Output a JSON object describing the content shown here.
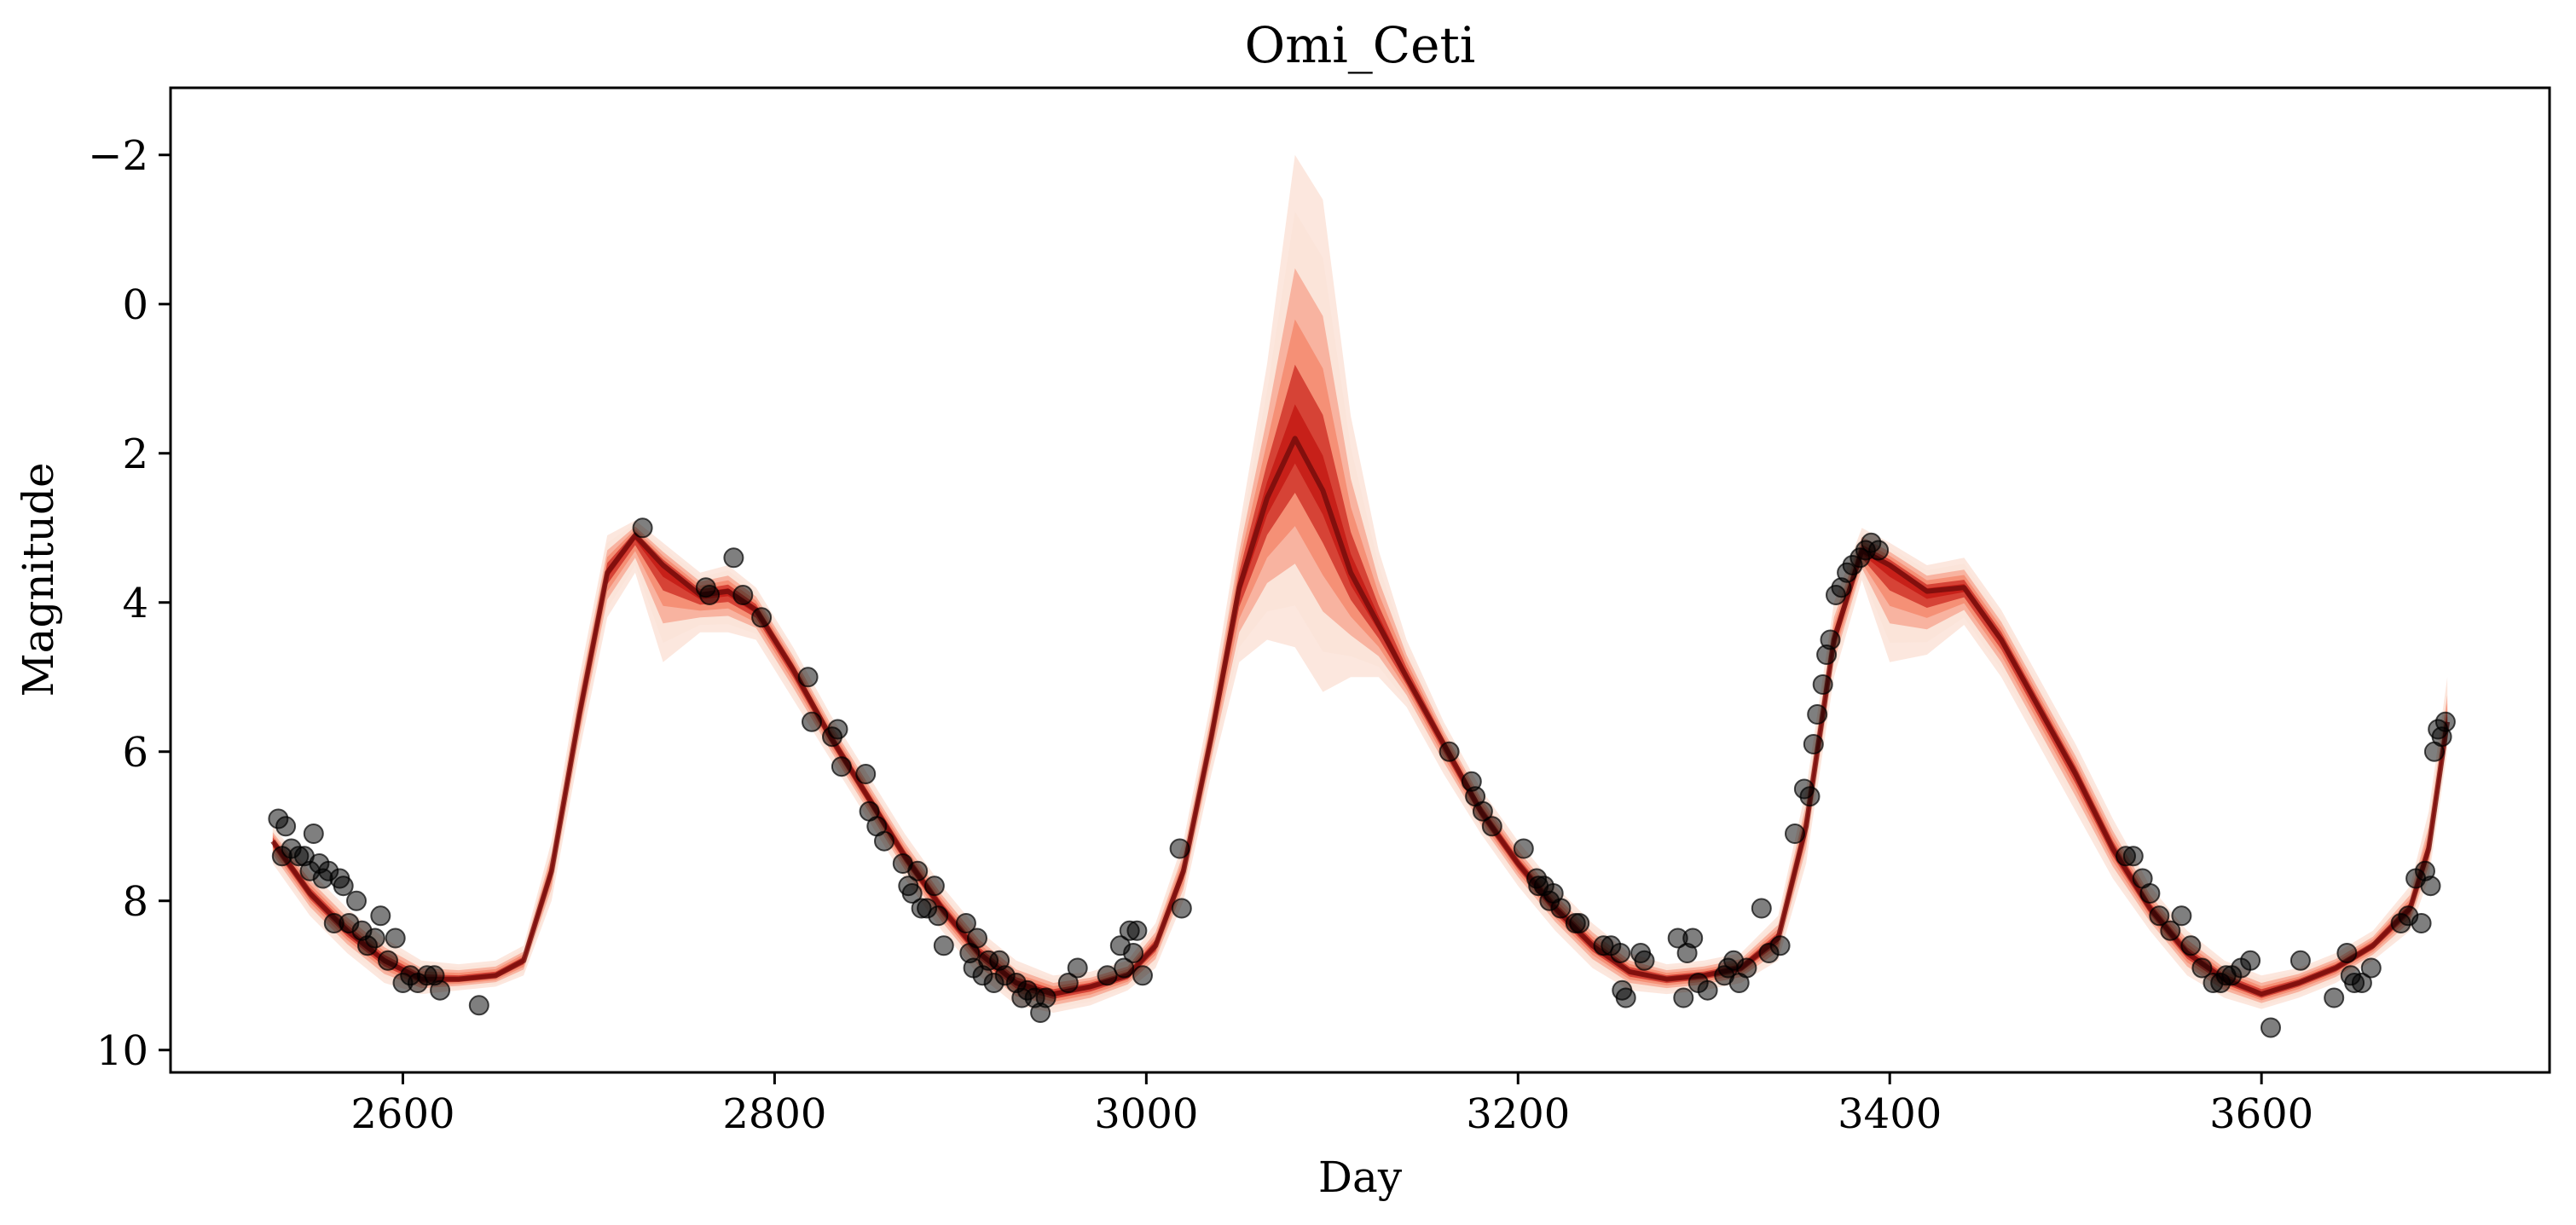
{
  "chart_data": {
    "type": "scatter",
    "title": "Omi_Ceti",
    "xlabel": "Day",
    "ylabel": "Magnitude",
    "xlim": [
      2475,
      3755
    ],
    "ylim": [
      10.3,
      -2.9
    ],
    "y_inverted": true,
    "x_ticks": [
      2600,
      2800,
      3000,
      3200,
      3400,
      3600
    ],
    "x_tick_labels": [
      "2600",
      "2800",
      "3000",
      "3200",
      "3400",
      "3600"
    ],
    "y_ticks": [
      -2,
      0,
      2,
      4,
      6,
      8,
      10
    ],
    "y_tick_labels": [
      "−2",
      "0",
      "2",
      "4",
      "6",
      "8",
      "10"
    ],
    "grid": false,
    "colors": {
      "band_light": "#fbe3d8",
      "band_mid": "#f4785a",
      "band_dark": "#c41a14",
      "median_line": "#6b0a0a",
      "observations": "#000000"
    },
    "model_band": {
      "x": [
        2530,
        2550,
        2570,
        2590,
        2610,
        2630,
        2650,
        2665,
        2680,
        2695,
        2710,
        2725,
        2740,
        2760,
        2775,
        2790,
        2810,
        2830,
        2850,
        2870,
        2890,
        2910,
        2930,
        2950,
        2970,
        2990,
        3005,
        3020,
        3035,
        3050,
        3065,
        3080,
        3095,
        3110,
        3125,
        3140,
        3160,
        3180,
        3200,
        3220,
        3240,
        3260,
        3280,
        3300,
        3320,
        3340,
        3355,
        3370,
        3385,
        3400,
        3420,
        3440,
        3460,
        3480,
        3500,
        3520,
        3540,
        3560,
        3580,
        3600,
        3620,
        3640,
        3660,
        3680,
        3690,
        3700
      ],
      "median": [
        7.2,
        7.9,
        8.4,
        8.8,
        9.05,
        9.05,
        9.0,
        8.8,
        7.6,
        5.5,
        3.6,
        3.1,
        3.5,
        3.9,
        3.85,
        4.1,
        4.9,
        5.8,
        6.6,
        7.4,
        8.1,
        8.7,
        9.1,
        9.25,
        9.15,
        9.0,
        8.6,
        7.6,
        5.8,
        3.8,
        2.6,
        1.8,
        2.5,
        3.6,
        4.3,
        5.0,
        5.9,
        6.8,
        7.5,
        8.1,
        8.6,
        8.95,
        9.05,
        9.0,
        8.9,
        8.5,
        7.0,
        4.5,
        3.3,
        3.5,
        3.85,
        3.8,
        4.5,
        5.4,
        6.3,
        7.3,
        8.1,
        8.7,
        9.05,
        9.25,
        9.1,
        8.9,
        8.6,
        8.1,
        7.3,
        5.6
      ],
      "lower": [
        7.0,
        7.6,
        8.1,
        8.5,
        8.8,
        8.85,
        8.8,
        8.6,
        7.2,
        5.0,
        3.1,
        2.9,
        3.2,
        3.6,
        3.5,
        3.8,
        4.6,
        5.5,
        6.3,
        7.1,
        7.8,
        8.4,
        8.8,
        9.0,
        8.95,
        8.8,
        8.3,
        7.2,
        5.3,
        3.0,
        0.8,
        -2.0,
        -1.4,
        1.5,
        3.3,
        4.5,
        5.6,
        6.5,
        7.2,
        7.8,
        8.3,
        8.7,
        8.85,
        8.8,
        8.7,
        8.2,
        6.5,
        4.0,
        3.0,
        3.2,
        3.5,
        3.4,
        4.1,
        5.0,
        5.9,
        6.9,
        7.8,
        8.4,
        8.8,
        9.0,
        8.9,
        8.7,
        8.4,
        7.8,
        6.8,
        5.0
      ],
      "upper": [
        7.5,
        8.2,
        8.7,
        9.1,
        9.25,
        9.2,
        9.15,
        9.0,
        8.0,
        6.0,
        4.2,
        3.6,
        4.8,
        4.4,
        4.4,
        4.5,
        5.3,
        6.1,
        6.9,
        7.7,
        8.4,
        9.0,
        9.4,
        9.5,
        9.4,
        9.2,
        8.9,
        8.0,
        6.3,
        4.8,
        4.5,
        4.6,
        5.2,
        5.0,
        5.0,
        5.4,
        6.3,
        7.1,
        7.8,
        8.4,
        8.9,
        9.2,
        9.25,
        9.2,
        9.1,
        8.8,
        7.5,
        5.0,
        3.7,
        4.8,
        4.7,
        4.3,
        5.0,
        5.9,
        6.8,
        7.7,
        8.4,
        9.0,
        9.3,
        9.45,
        9.3,
        9.1,
        8.8,
        8.4,
        7.7,
        6.0
      ]
    },
    "observations": {
      "x": [
        2533,
        2535,
        2537,
        2540,
        2544,
        2547,
        2550,
        2552,
        2555,
        2557,
        2560,
        2563,
        2566,
        2568,
        2571,
        2575,
        2578,
        2581,
        2585,
        2588,
        2592,
        2596,
        2600,
        2604,
        2608,
        2613,
        2617,
        2620,
        2641,
        2729,
        2763,
        2765,
        2778,
        2783,
        2793,
        2818,
        2820,
        2831,
        2834,
        2836,
        2849,
        2851,
        2855,
        2859,
        2869,
        2872,
        2874,
        2877,
        2879,
        2882,
        2886,
        2888,
        2891,
        2903,
        2905,
        2907,
        2909,
        2912,
        2915,
        2918,
        2921,
        2924,
        2930,
        2933,
        2936,
        2940,
        2943,
        2946,
        2958,
        2963,
        2979,
        2986,
        2988,
        2991,
        2993,
        2995,
        2998,
        3018,
        3019,
        3163,
        3175,
        3177,
        3181,
        3186,
        3203,
        3210,
        3211,
        3214,
        3217,
        3219,
        3223,
        3231,
        3233,
        3246,
        3250,
        3255,
        3256,
        3258,
        3266,
        3268,
        3286,
        3289,
        3291,
        3294,
        3297,
        3302,
        3311,
        3313,
        3316,
        3319,
        3323,
        3331,
        3335,
        3341,
        3349,
        3354,
        3357,
        3359,
        3361,
        3364,
        3366,
        3368,
        3371,
        3374,
        3377,
        3380,
        3384,
        3387,
        3390,
        3394,
        3527,
        3531,
        3536,
        3540,
        3545,
        3551,
        3557,
        3562,
        3568,
        3574,
        3578,
        3581,
        3584,
        3589,
        3594,
        3605,
        3621,
        3639,
        3646,
        3648,
        3650,
        3654,
        3659,
        3675,
        3679,
        3683,
        3686,
        3688,
        3691,
        3693,
        3695,
        3697,
        3699
      ],
      "y": [
        6.9,
        7.4,
        7.0,
        7.3,
        7.4,
        7.4,
        7.6,
        7.1,
        7.5,
        7.7,
        7.6,
        8.3,
        7.7,
        7.8,
        8.3,
        8.0,
        8.4,
        8.6,
        8.5,
        8.2,
        8.8,
        8.5,
        9.1,
        9.0,
        9.1,
        9.0,
        9.0,
        9.2,
        9.4,
        3.0,
        3.8,
        3.9,
        3.4,
        3.9,
        4.2,
        5.0,
        5.6,
        5.8,
        5.7,
        6.2,
        6.3,
        6.8,
        7.0,
        7.2,
        7.5,
        7.8,
        7.9,
        7.6,
        8.1,
        8.1,
        7.8,
        8.2,
        8.6,
        8.3,
        8.7,
        8.9,
        8.5,
        9.0,
        8.8,
        9.1,
        8.8,
        9.0,
        9.1,
        9.3,
        9.2,
        9.3,
        9.5,
        9.3,
        9.1,
        8.9,
        9.0,
        8.6,
        8.9,
        8.4,
        8.7,
        8.4,
        9.0,
        7.3,
        8.1,
        6.0,
        6.4,
        6.6,
        6.8,
        7.0,
        7.3,
        7.7,
        7.8,
        7.8,
        8.0,
        7.9,
        8.1,
        8.3,
        8.3,
        8.6,
        8.6,
        8.7,
        9.2,
        9.3,
        8.7,
        8.8,
        8.5,
        9.3,
        8.7,
        8.5,
        9.1,
        9.2,
        9.0,
        8.9,
        8.8,
        9.1,
        8.9,
        8.1,
        8.7,
        8.6,
        7.1,
        6.5,
        6.6,
        5.9,
        5.5,
        5.1,
        4.7,
        4.5,
        3.9,
        3.8,
        3.6,
        3.5,
        3.4,
        3.3,
        3.2,
        3.3,
        7.4,
        7.4,
        7.7,
        7.9,
        8.2,
        8.4,
        8.2,
        8.6,
        8.9,
        9.1,
        9.1,
        9.0,
        9.0,
        8.9,
        8.8,
        9.7,
        8.8,
        9.3,
        8.7,
        9.0,
        9.1,
        9.1,
        8.9,
        8.3,
        8.2,
        7.7,
        8.3,
        7.6,
        7.8,
        6.0,
        5.7,
        5.8,
        5.6
      ]
    }
  }
}
